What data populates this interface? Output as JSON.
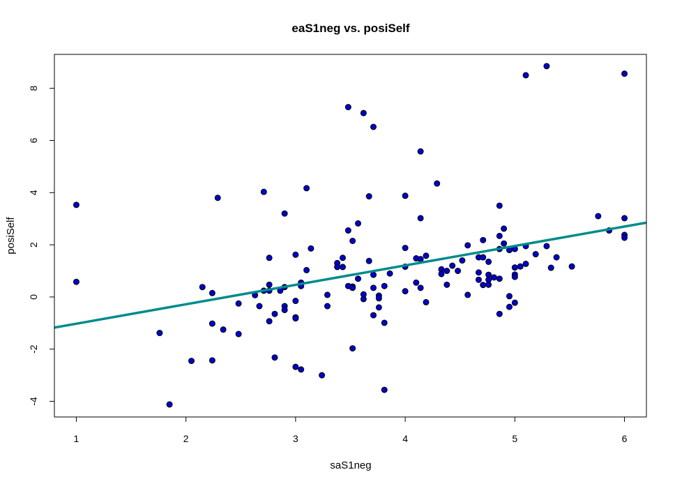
{
  "chart_data": {
    "type": "scatter",
    "title": "eaS1neg vs. posiSelf",
    "xlabel": "saS1neg",
    "ylabel": "posiSelf",
    "xlim": [
      0.8,
      6.2
    ],
    "ylim": [
      -4.6,
      9.3
    ],
    "xticks": [
      1,
      2,
      3,
      4,
      5,
      6
    ],
    "yticks": [
      -4,
      -2,
      0,
      2,
      4,
      6,
      8
    ],
    "grid": false,
    "legend": "none",
    "point_fill": "#0000cd",
    "point_stroke": "#000000",
    "line_color": "#008b8b",
    "regression_line": {
      "intercept": -1.77,
      "slope": 0.745
    },
    "points": [
      [
        1.0,
        3.53
      ],
      [
        1.0,
        0.58
      ],
      [
        1.76,
        -1.38
      ],
      [
        1.85,
        -4.12
      ],
      [
        2.05,
        -2.45
      ],
      [
        2.15,
        0.38
      ],
      [
        2.24,
        0.15
      ],
      [
        2.24,
        -1.02
      ],
      [
        2.24,
        -2.43
      ],
      [
        2.29,
        3.8
      ],
      [
        2.34,
        -1.25
      ],
      [
        2.48,
        -1.42
      ],
      [
        2.48,
        -0.25
      ],
      [
        2.63,
        0.07
      ],
      [
        2.67,
        -0.35
      ],
      [
        2.71,
        4.03
      ],
      [
        2.71,
        0.24
      ],
      [
        2.76,
        0.47
      ],
      [
        2.76,
        0.24
      ],
      [
        2.76,
        1.5
      ],
      [
        2.76,
        -0.93
      ],
      [
        2.81,
        -2.32
      ],
      [
        2.81,
        -0.65
      ],
      [
        2.86,
        0.24
      ],
      [
        2.9,
        3.2
      ],
      [
        2.9,
        0.38
      ],
      [
        2.9,
        -0.35
      ],
      [
        2.9,
        -0.5
      ],
      [
        3.0,
        1.62
      ],
      [
        3.0,
        -0.15
      ],
      [
        3.0,
        -0.78
      ],
      [
        3.0,
        -0.82
      ],
      [
        3.0,
        -2.68
      ],
      [
        3.05,
        0.55
      ],
      [
        3.05,
        0.42
      ],
      [
        3.05,
        -2.78
      ],
      [
        3.1,
        4.17
      ],
      [
        3.1,
        1.03
      ],
      [
        3.14,
        1.86
      ],
      [
        3.24,
        -3.0
      ],
      [
        3.29,
        0.08
      ],
      [
        3.29,
        -0.35
      ],
      [
        3.38,
        1.3
      ],
      [
        3.38,
        1.15
      ],
      [
        3.43,
        1.5
      ],
      [
        3.43,
        1.15
      ],
      [
        3.48,
        7.28
      ],
      [
        3.48,
        2.55
      ],
      [
        3.48,
        0.42
      ],
      [
        3.52,
        2.15
      ],
      [
        3.52,
        0.4
      ],
      [
        3.52,
        0.35
      ],
      [
        3.52,
        -1.97
      ],
      [
        3.57,
        2.82
      ],
      [
        3.57,
        0.7
      ],
      [
        3.62,
        7.05
      ],
      [
        3.62,
        0.1
      ],
      [
        3.62,
        -0.08
      ],
      [
        3.67,
        3.86
      ],
      [
        3.67,
        1.38
      ],
      [
        3.71,
        6.52
      ],
      [
        3.71,
        0.85
      ],
      [
        3.71,
        0.35
      ],
      [
        3.71,
        -0.7
      ],
      [
        3.76,
        0.05
      ],
      [
        3.76,
        -0.05
      ],
      [
        3.76,
        -0.4
      ],
      [
        3.81,
        0.42
      ],
      [
        3.81,
        -0.99
      ],
      [
        3.81,
        -3.56
      ],
      [
        3.86,
        0.9
      ],
      [
        4.0,
        3.88
      ],
      [
        4.0,
        1.88
      ],
      [
        4.0,
        1.16
      ],
      [
        4.0,
        0.22
      ],
      [
        4.1,
        1.48
      ],
      [
        4.1,
        0.55
      ],
      [
        4.14,
        5.58
      ],
      [
        4.14,
        3.02
      ],
      [
        4.14,
        1.45
      ],
      [
        4.14,
        0.35
      ],
      [
        4.19,
        1.58
      ],
      [
        4.19,
        -0.2
      ],
      [
        4.29,
        4.35
      ],
      [
        4.33,
        1.06
      ],
      [
        4.33,
        0.88
      ],
      [
        4.38,
        1.0
      ],
      [
        4.38,
        0.47
      ],
      [
        4.43,
        1.2
      ],
      [
        4.48,
        1.0
      ],
      [
        4.52,
        1.4
      ],
      [
        4.57,
        1.98
      ],
      [
        4.57,
        0.08
      ],
      [
        4.67,
        1.52
      ],
      [
        4.67,
        0.94
      ],
      [
        4.67,
        0.66
      ],
      [
        4.71,
        2.18
      ],
      [
        4.71,
        1.52
      ],
      [
        4.71,
        0.46
      ],
      [
        4.76,
        1.35
      ],
      [
        4.76,
        0.85
      ],
      [
        4.76,
        0.66
      ],
      [
        4.76,
        0.47
      ],
      [
        4.81,
        0.75
      ],
      [
        4.86,
        3.5
      ],
      [
        4.86,
        2.34
      ],
      [
        4.86,
        1.84
      ],
      [
        4.86,
        0.7
      ],
      [
        4.86,
        -0.65
      ],
      [
        4.9,
        2.62
      ],
      [
        4.9,
        2.05
      ],
      [
        4.95,
        1.8
      ],
      [
        4.95,
        0.03
      ],
      [
        4.95,
        -0.38
      ],
      [
        5.0,
        1.84
      ],
      [
        5.0,
        1.13
      ],
      [
        5.0,
        0.86
      ],
      [
        5.0,
        0.77
      ],
      [
        5.0,
        -0.22
      ],
      [
        5.05,
        1.17
      ],
      [
        5.1,
        8.5
      ],
      [
        5.1,
        1.95
      ],
      [
        5.1,
        1.27
      ],
      [
        5.19,
        1.64
      ],
      [
        5.29,
        8.85
      ],
      [
        5.29,
        1.95
      ],
      [
        5.33,
        1.12
      ],
      [
        5.38,
        1.52
      ],
      [
        5.52,
        1.17
      ],
      [
        5.76,
        3.1
      ],
      [
        5.86,
        2.55
      ],
      [
        6.0,
        8.56
      ],
      [
        6.0,
        3.02
      ],
      [
        6.0,
        2.38
      ],
      [
        6.0,
        2.27
      ]
    ]
  }
}
